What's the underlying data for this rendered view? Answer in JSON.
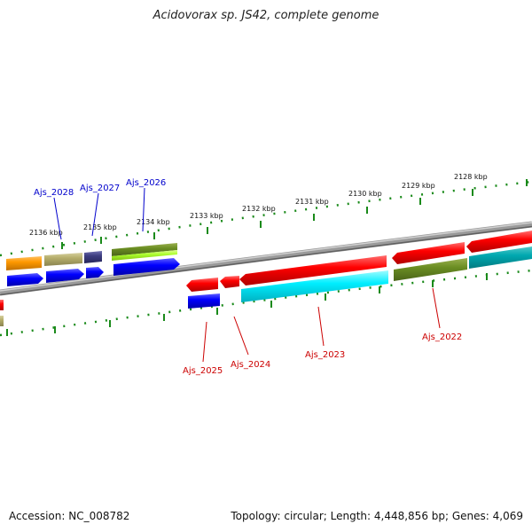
{
  "header": {
    "title": "Acidovorax sp. JS42, complete genome"
  },
  "footer": {
    "accession": "Accession: NC_008782",
    "summary": "Topology: circular; Length: 4,448,856 bp; Genes: 4,069"
  },
  "scale_ticks": [
    {
      "label": "2136 kbp"
    },
    {
      "label": "2135 kbp"
    },
    {
      "label": "2134 kbp"
    },
    {
      "label": "2133 kbp"
    },
    {
      "label": "2132 kbp"
    },
    {
      "label": "2131 kbp"
    },
    {
      "label": "2130 kbp"
    },
    {
      "label": "2129 kbp"
    },
    {
      "label": "2128 kbp"
    }
  ],
  "gene_labels_top": [
    {
      "name": "Ajs_2028",
      "color": "#0000cc"
    },
    {
      "name": "Ajs_2027",
      "color": "#0000cc"
    },
    {
      "name": "Ajs_2026",
      "color": "#0000cc"
    }
  ],
  "gene_labels_bottom": [
    {
      "name": "Ajs_2025",
      "color": "#cc0000"
    },
    {
      "name": "Ajs_2024",
      "color": "#cc0000"
    },
    {
      "name": "Ajs_2023",
      "color": "#cc0000"
    },
    {
      "name": "Ajs_2022",
      "color": "#cc0000"
    }
  ],
  "colors": {
    "backbone": "#808080",
    "tick": "#1a8a1a",
    "forward_cds": "#0000ff",
    "reverse_cds": "#ff0000",
    "cyan_feature": "#00e5ee",
    "olive_feature": "#6b8e23",
    "orange_feature": "#ff9900",
    "khaki_feature": "#b5ad6a",
    "navy_feature": "#3d3d80",
    "lime_feature": "#adff2f"
  }
}
